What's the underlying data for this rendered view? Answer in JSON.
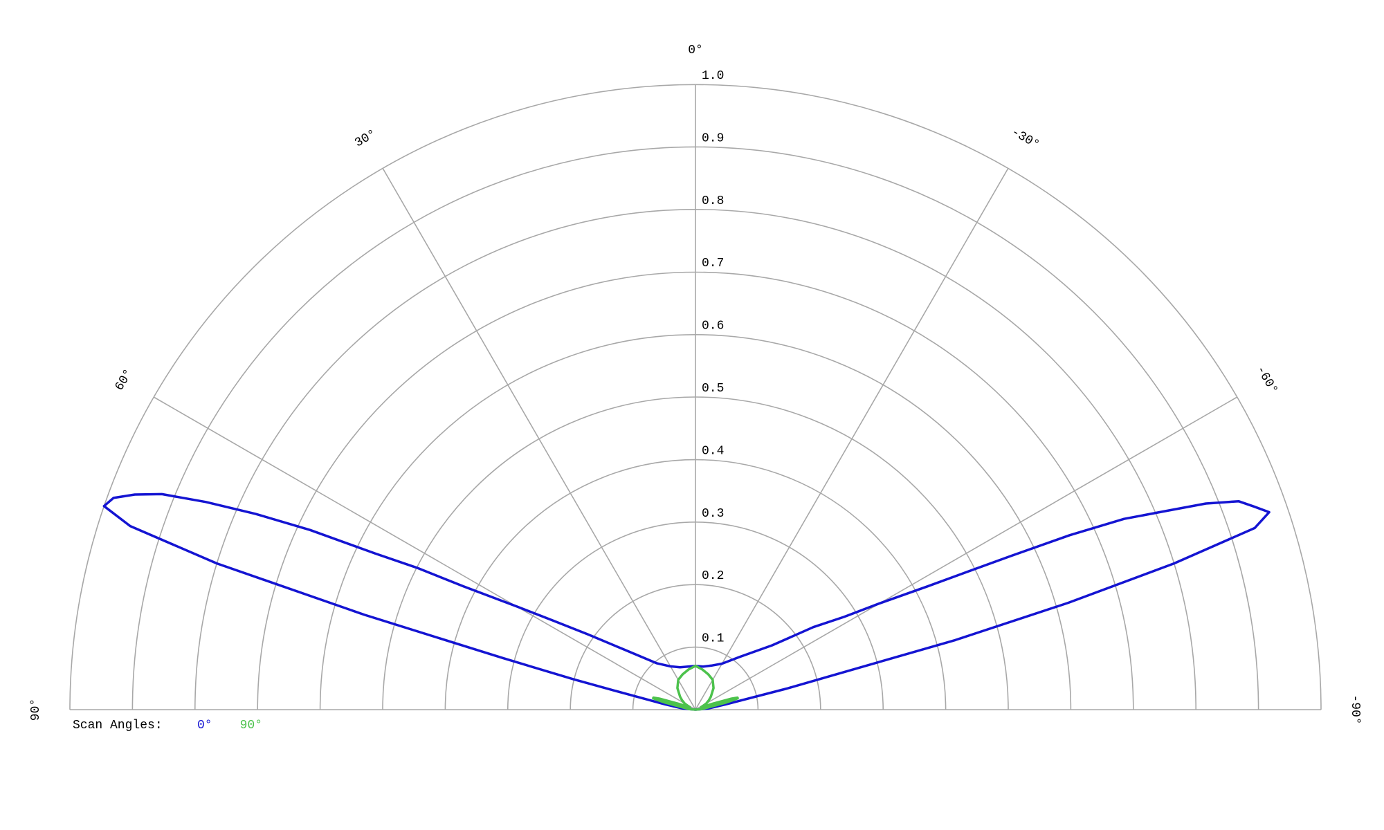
{
  "chart_data": {
    "type": "polar",
    "legend_title": "Scan Angles:",
    "x": [
      90,
      85,
      80,
      77,
      76,
      75,
      74,
      73,
      72,
      71,
      70,
      69,
      68,
      67,
      66,
      65,
      64,
      63,
      62,
      60,
      58,
      55,
      50,
      40,
      30,
      20,
      10,
      0,
      -10,
      -20,
      -30,
      -40,
      -50,
      -55,
      -58,
      -60,
      -62,
      -63,
      -64,
      -65,
      -66,
      -67,
      -68,
      -69,
      -70,
      -71,
      -72,
      -73,
      -74,
      -75,
      -76,
      -77,
      -80,
      -85,
      -90
    ],
    "series": [
      {
        "name": "0°",
        "color": "#1414d2",
        "values": [
          0,
          0.02,
          0.05,
          0.12,
          0.2,
          0.32,
          0.55,
          0.8,
          0.95,
          1.0,
          0.99,
          0.96,
          0.92,
          0.85,
          0.77,
          0.68,
          0.57,
          0.5,
          0.42,
          0.33,
          0.27,
          0.21,
          0.15,
          0.097,
          0.08,
          0.072,
          0.07,
          0.07,
          0.07,
          0.075,
          0.085,
          0.11,
          0.16,
          0.23,
          0.28,
          0.34,
          0.42,
          0.48,
          0.56,
          0.66,
          0.75,
          0.81,
          0.88,
          0.93,
          0.95,
          0.97,
          0.94,
          0.8,
          0.62,
          0.43,
          0.22,
          0.15,
          0.05,
          0.02,
          0
        ]
      },
      {
        "name": "90°",
        "color": "#4cc24c",
        "values": [
          0,
          0.01,
          0.02,
          0.05,
          0.06,
          0.07,
          0.07,
          0.06,
          0.04,
          0.03,
          0.02,
          0.015,
          0.012,
          0.01,
          0.01,
          0.01,
          0.012,
          0.014,
          0.016,
          0.02,
          0.022,
          0.026,
          0.032,
          0.045,
          0.055,
          0.06,
          0.065,
          0.07,
          0.065,
          0.06,
          0.055,
          0.045,
          0.032,
          0.026,
          0.022,
          0.02,
          0.016,
          0.014,
          0.012,
          0.01,
          0.01,
          0.01,
          0.012,
          0.015,
          0.02,
          0.03,
          0.04,
          0.06,
          0.07,
          0.07,
          0.06,
          0.05,
          0.02,
          0.01,
          0
        ]
      }
    ],
    "rlim": [
      0,
      1
    ],
    "rticks": [
      0.1,
      0.2,
      0.3,
      0.4,
      0.5,
      0.6,
      0.7,
      0.8,
      0.9,
      {
        "value": 1,
        "label": "1.0"
      }
    ],
    "thetaticks": [
      {
        "value": 90,
        "label": "90°"
      },
      {
        "value": 60,
        "label": "60°"
      },
      {
        "value": 30,
        "label": "30°"
      },
      {
        "value": 0,
        "label": "0°"
      },
      {
        "value": -30,
        "label": "-30°"
      },
      {
        "value": -60,
        "label": "-60°"
      },
      {
        "value": -90,
        "label": "-90°"
      }
    ],
    "grid": true
  }
}
